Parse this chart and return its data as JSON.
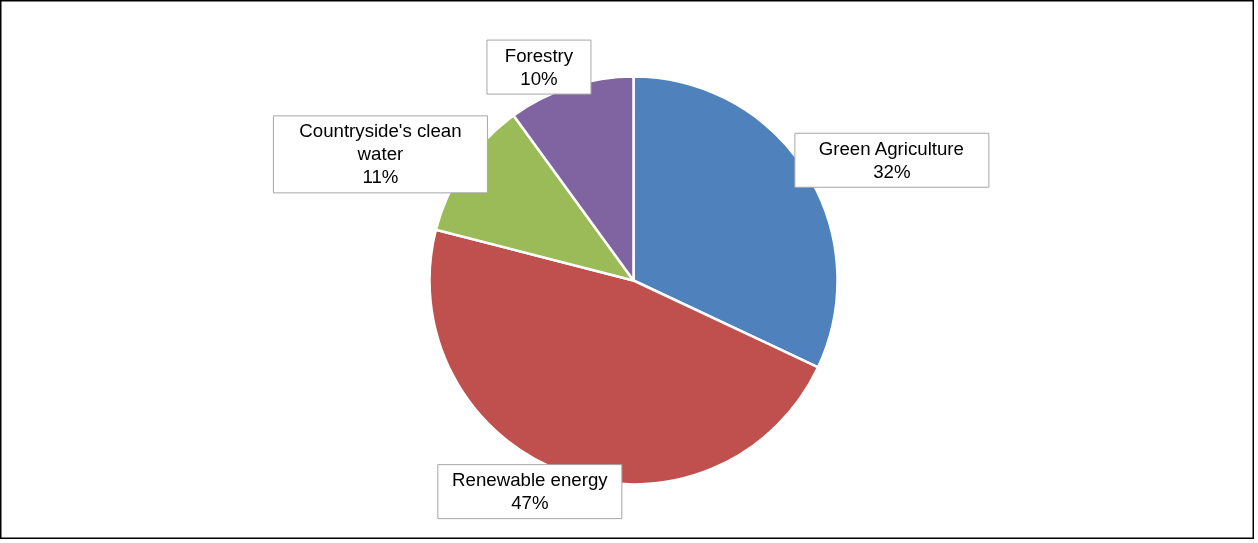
{
  "chart_data": {
    "type": "pie",
    "categories": [
      "Green Agriculture",
      "Renewable energy",
      "Countryside's clean water",
      "Forestry"
    ],
    "values": [
      32,
      47,
      11,
      10
    ],
    "colors": [
      "#4f81bd",
      "#c0504d",
      "#9bbb59",
      "#8064a2"
    ],
    "value_labels": [
      "32%",
      "47%",
      "11%",
      "10%"
    ]
  }
}
